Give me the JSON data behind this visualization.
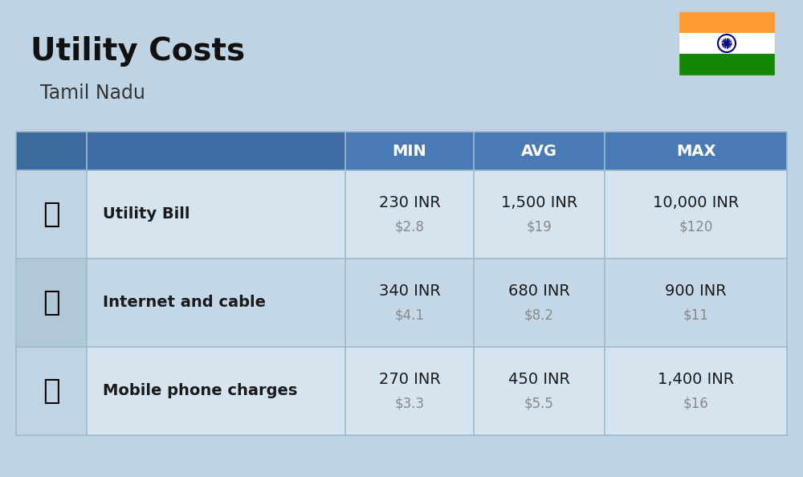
{
  "title": "Utility Costs",
  "subtitle": "Tamil Nadu",
  "background_color": "#bed3e3",
  "header_color": "#4a7ab5",
  "header_text_color": "#ffffff",
  "row_colors_odd": "#d6e4f0",
  "row_colors_even": "#c5d8e8",
  "icon_col_color_odd": "#c0d4e4",
  "icon_col_color_even": "#b0c8d8",
  "divider_color": "#9bbbd0",
  "col_headers": [
    "MIN",
    "AVG",
    "MAX"
  ],
  "rows": [
    {
      "label": "Utility Bill",
      "min_inr": "230 INR",
      "min_usd": "$2.8",
      "avg_inr": "1,500 INR",
      "avg_usd": "$19",
      "max_inr": "10,000 INR",
      "max_usd": "$120"
    },
    {
      "label": "Internet and cable",
      "min_inr": "340 INR",
      "min_usd": "$4.1",
      "avg_inr": "680 INR",
      "avg_usd": "$8.2",
      "max_inr": "900 INR",
      "max_usd": "$11"
    },
    {
      "label": "Mobile phone charges",
      "min_inr": "270 INR",
      "min_usd": "$3.3",
      "avg_inr": "450 INR",
      "avg_usd": "$5.5",
      "max_inr": "1,400 INR",
      "max_usd": "$16"
    }
  ],
  "flag_colors": [
    "#ff9933",
    "#ffffff",
    "#138808"
  ],
  "flag_emblem_color": "#000080",
  "title_color": "#111111",
  "subtitle_color": "#333333",
  "inr_color": "#1a1a1a",
  "usd_color": "#888888"
}
